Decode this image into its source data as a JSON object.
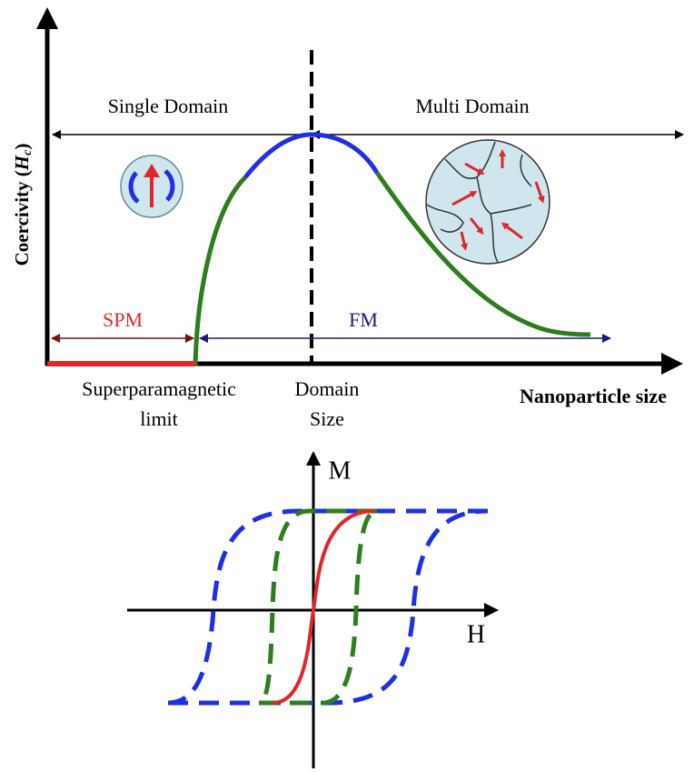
{
  "top_diagram": {
    "y_axis_label": {
      "prefix": "Coercivity (",
      "symbol": "H",
      "subscript": "c",
      "suffix": ")"
    },
    "x_axis_label": "Nanoparticle size",
    "region_left": "Single Domain",
    "region_right": "Multi Domain",
    "spm": "SPM",
    "fm": "FM",
    "limit_label": [
      "Superparamagnetic",
      "limit"
    ],
    "domain_label": [
      "Domain",
      "Size"
    ]
  },
  "bottom_diagram": {
    "m_axis": "M",
    "h_axis": "H"
  }
}
